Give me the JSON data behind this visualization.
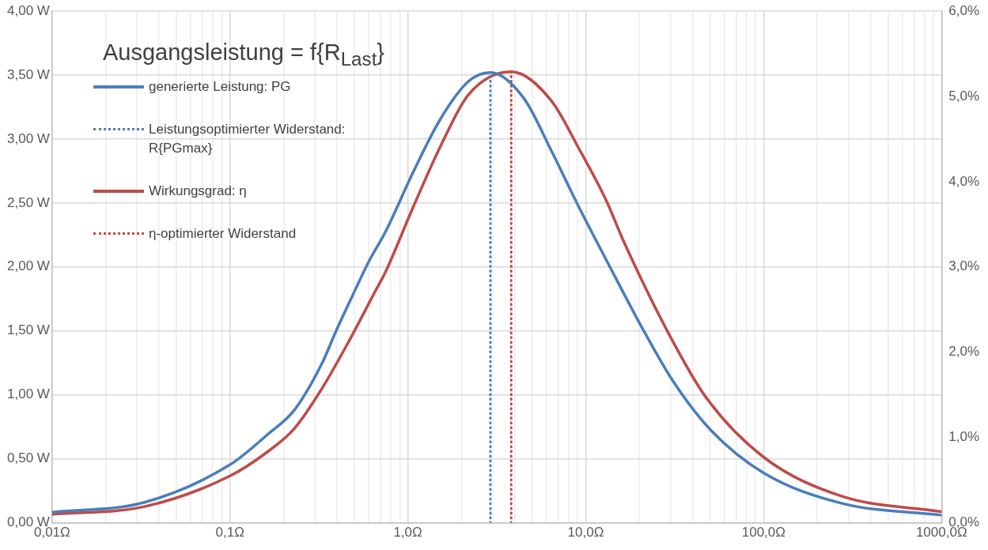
{
  "chart_data": {
    "type": "line",
    "title": "Ausgangsleistung = f{R$_{Last}$}",
    "log": "x",
    "grid": true,
    "legend": "top left",
    "marker": "none",
    "xlim": [
      0.01,
      1000
    ],
    "xticks": [
      {
        "value": 0.01,
        "label": "0,01Ω"
      },
      {
        "value": 0.02,
        "label": null
      },
      {
        "value": 0.03,
        "label": null
      },
      {
        "value": 0.04,
        "label": null
      },
      {
        "value": 0.05,
        "label": null
      },
      {
        "value": 0.06,
        "label": null
      },
      {
        "value": 0.07,
        "label": null
      },
      {
        "value": 0.08,
        "label": null
      },
      {
        "value": 0.09,
        "label": null
      },
      {
        "value": 0.1,
        "label": "0,1Ω"
      },
      {
        "value": 0.2,
        "label": null
      },
      {
        "value": 0.3,
        "label": null
      },
      {
        "value": 0.4,
        "label": null
      },
      {
        "value": 0.5,
        "label": null
      },
      {
        "value": 0.6,
        "label": null
      },
      {
        "value": 0.7,
        "label": null
      },
      {
        "value": 0.8,
        "label": null
      },
      {
        "value": 0.9,
        "label": null
      },
      {
        "value": 1,
        "label": "1,0Ω"
      },
      {
        "value": 2,
        "label": null
      },
      {
        "value": 3,
        "label": null
      },
      {
        "value": 4,
        "label": null
      },
      {
        "value": 5,
        "label": null
      },
      {
        "value": 6,
        "label": null
      },
      {
        "value": 7,
        "label": null
      },
      {
        "value": 8,
        "label": null
      },
      {
        "value": 9,
        "label": null
      },
      {
        "value": 10,
        "label": "10,0Ω"
      },
      {
        "value": 20,
        "label": null
      },
      {
        "value": 30,
        "label": null
      },
      {
        "value": 40,
        "label": null
      },
      {
        "value": 50,
        "label": null
      },
      {
        "value": 60,
        "label": null
      },
      {
        "value": 70,
        "label": null
      },
      {
        "value": 80,
        "label": null
      },
      {
        "value": 90,
        "label": null
      },
      {
        "value": 100,
        "label": "100,0Ω"
      },
      {
        "value": 200,
        "label": null
      },
      {
        "value": 300,
        "label": null
      },
      {
        "value": 400,
        "label": null
      },
      {
        "value": 500,
        "label": null
      },
      {
        "value": 600,
        "label": null
      },
      {
        "value": 700,
        "label": null
      },
      {
        "value": 800,
        "label": null
      },
      {
        "value": 900,
        "label": null
      },
      {
        "value": 1000,
        "label": "1000,0Ω"
      }
    ],
    "ylim": [
      0,
      4
    ],
    "yticks": [
      {
        "value": 0,
        "label": "0,00 W"
      },
      {
        "value": 0.5,
        "label": "0,50 W"
      },
      {
        "value": 1,
        "label": "1,00 W"
      },
      {
        "value": 1.5,
        "label": "1,50 W"
      },
      {
        "value": 2,
        "label": "2,00 W"
      },
      {
        "value": 2.5,
        "label": "2,50 W"
      },
      {
        "value": 3,
        "label": "3,00 W"
      },
      {
        "value": 3.5,
        "label": "3,50 W"
      },
      {
        "value": 4,
        "label": "4,00 W"
      }
    ],
    "y2lim": [
      0,
      6
    ],
    "y2ticks": [
      {
        "value": 0,
        "label": "0,0%"
      },
      {
        "value": 1,
        "label": "1,0%"
      },
      {
        "value": 2,
        "label": "2,0%"
      },
      {
        "value": 3,
        "label": "3,0%"
      },
      {
        "value": 4,
        "label": "4,0%"
      },
      {
        "value": 5,
        "label": "5,0%"
      },
      {
        "value": 6,
        "label": "6,0%"
      }
    ],
    "series": [
      {
        "name": "generierte Leistung: PG",
        "color": "#4a7ebb",
        "line_style": "solid",
        "x": [
          0.01,
          0.033,
          0.1,
          0.162,
          0.231,
          0.33,
          0.395,
          0.49,
          0.607,
          0.752,
          1.07,
          1.53,
          2.19,
          2.91,
          4.48,
          6.4,
          9.14,
          13.1,
          21.4,
          31.2,
          50.8,
          100,
          277,
          1000
        ],
        "values": [
          0.083,
          0.16,
          0.454,
          0.688,
          0.885,
          1.25,
          1.5,
          1.78,
          2.05,
          2.28,
          2.74,
          3.16,
          3.45,
          3.52,
          3.32,
          2.91,
          2.47,
          2.05,
          1.49,
          1.1,
          0.72,
          0.39,
          0.151,
          0.06
        ]
      },
      {
        "name": "Leistungsoptimierter Widerstand: R{PGmax}",
        "color": "#4a7ebb",
        "line_style": "dotted",
        "x": [
          2.91,
          2.91
        ],
        "values": [
          0,
          3.52
        ]
      },
      {
        "name": "Wirkungsgrad: η",
        "color": "#be4b48",
        "line_style": "solid",
        "axis": "y2",
        "x": [
          0.01,
          0.033,
          0.1,
          0.162,
          0.231,
          0.33,
          0.472,
          0.65,
          0.752,
          1.07,
          1.53,
          2.19,
          3.81,
          6.4,
          9.14,
          13.1,
          16.1,
          28.9,
          47.1,
          100,
          277,
          1000
        ],
        "values": [
          0.1,
          0.19,
          0.55,
          0.83,
          1.11,
          1.58,
          2.15,
          2.7,
          2.95,
          3.7,
          4.42,
          5.02,
          5.29,
          4.95,
          4.39,
          3.77,
          3.33,
          2.24,
          1.48,
          0.77,
          0.31,
          0.13
        ]
      },
      {
        "name": "η-optimierter Widerstand",
        "color": "#be4b48",
        "line_style": "dotted",
        "axis": "y2",
        "x": [
          3.81,
          3.81
        ],
        "values": [
          0,
          5.29
        ]
      }
    ]
  }
}
